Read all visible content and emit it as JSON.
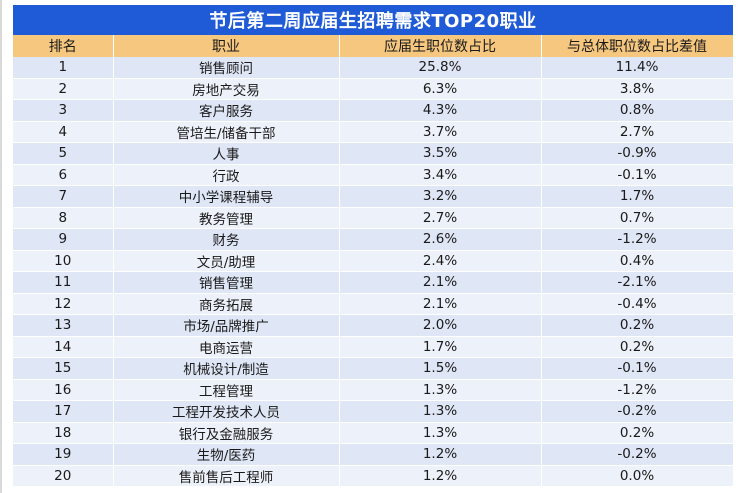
{
  "table": {
    "title": "节后第二周应届生招聘需求TOP20职业",
    "headers": [
      "排名",
      "职业",
      "应届生职位数占比",
      "与总体职位数占比差值"
    ],
    "rows": [
      {
        "rank": "1",
        "job": "销售顾问",
        "share": "25.8%",
        "diff": "11.4%"
      },
      {
        "rank": "2",
        "job": "房地产交易",
        "share": "6.3%",
        "diff": "3.8%"
      },
      {
        "rank": "3",
        "job": "客户服务",
        "share": "4.3%",
        "diff": "0.8%"
      },
      {
        "rank": "4",
        "job": "管培生/储备干部",
        "share": "3.7%",
        "diff": "2.7%"
      },
      {
        "rank": "5",
        "job": "人事",
        "share": "3.5%",
        "diff": "-0.9%"
      },
      {
        "rank": "6",
        "job": "行政",
        "share": "3.4%",
        "diff": "-0.1%"
      },
      {
        "rank": "7",
        "job": "中小学课程辅导",
        "share": "3.2%",
        "diff": "1.7%"
      },
      {
        "rank": "8",
        "job": "教务管理",
        "share": "2.7%",
        "diff": "0.7%"
      },
      {
        "rank": "9",
        "job": "财务",
        "share": "2.6%",
        "diff": "-1.2%"
      },
      {
        "rank": "10",
        "job": "文员/助理",
        "share": "2.4%",
        "diff": "0.4%"
      },
      {
        "rank": "11",
        "job": "销售管理",
        "share": "2.1%",
        "diff": "-2.1%"
      },
      {
        "rank": "12",
        "job": "商务拓展",
        "share": "2.1%",
        "diff": "-0.4%"
      },
      {
        "rank": "13",
        "job": "市场/品牌推广",
        "share": "2.0%",
        "diff": "0.2%"
      },
      {
        "rank": "14",
        "job": "电商运营",
        "share": "1.7%",
        "diff": "0.2%"
      },
      {
        "rank": "15",
        "job": "机械设计/制造",
        "share": "1.5%",
        "diff": "-0.1%"
      },
      {
        "rank": "16",
        "job": "工程管理",
        "share": "1.3%",
        "diff": "-1.2%"
      },
      {
        "rank": "17",
        "job": "工程开发技术人员",
        "share": "1.3%",
        "diff": "-0.2%"
      },
      {
        "rank": "18",
        "job": "银行及金融服务",
        "share": "1.3%",
        "diff": "0.2%"
      },
      {
        "rank": "19",
        "job": "生物/医药",
        "share": "1.2%",
        "diff": "-0.2%"
      },
      {
        "rank": "20",
        "job": "售前售后工程师",
        "share": "1.2%",
        "diff": "0.0%"
      }
    ]
  },
  "colors": {
    "title_bg": "#1f5bd6",
    "header_bg": "#f6c77f",
    "row_odd_bg": "#dfe6f6",
    "row_even_bg": "#edf1fa"
  }
}
